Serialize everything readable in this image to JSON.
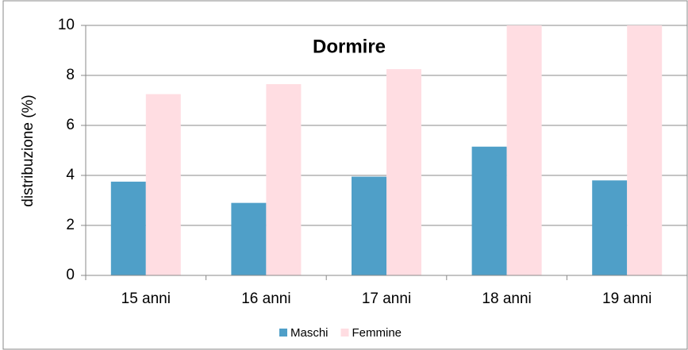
{
  "chart_data": {
    "type": "bar",
    "title": "Dormire",
    "ylabel": "distribuzione (%)",
    "categories": [
      "15 anni",
      "16 anni",
      "17 anni",
      "18 anni",
      "19 anni"
    ],
    "series": [
      {
        "name": "Maschi",
        "color": "#4f9fc8",
        "values": [
          3.75,
          2.9,
          3.95,
          5.15,
          3.8
        ]
      },
      {
        "name": "Femmine",
        "color": "#ffdde2",
        "values": [
          7.25,
          7.65,
          8.25,
          10,
          10
        ]
      }
    ],
    "ylim": [
      0,
      10
    ],
    "yticks": [
      0,
      2,
      4,
      6,
      8,
      10
    ],
    "grid": true,
    "legend": "bottom"
  }
}
